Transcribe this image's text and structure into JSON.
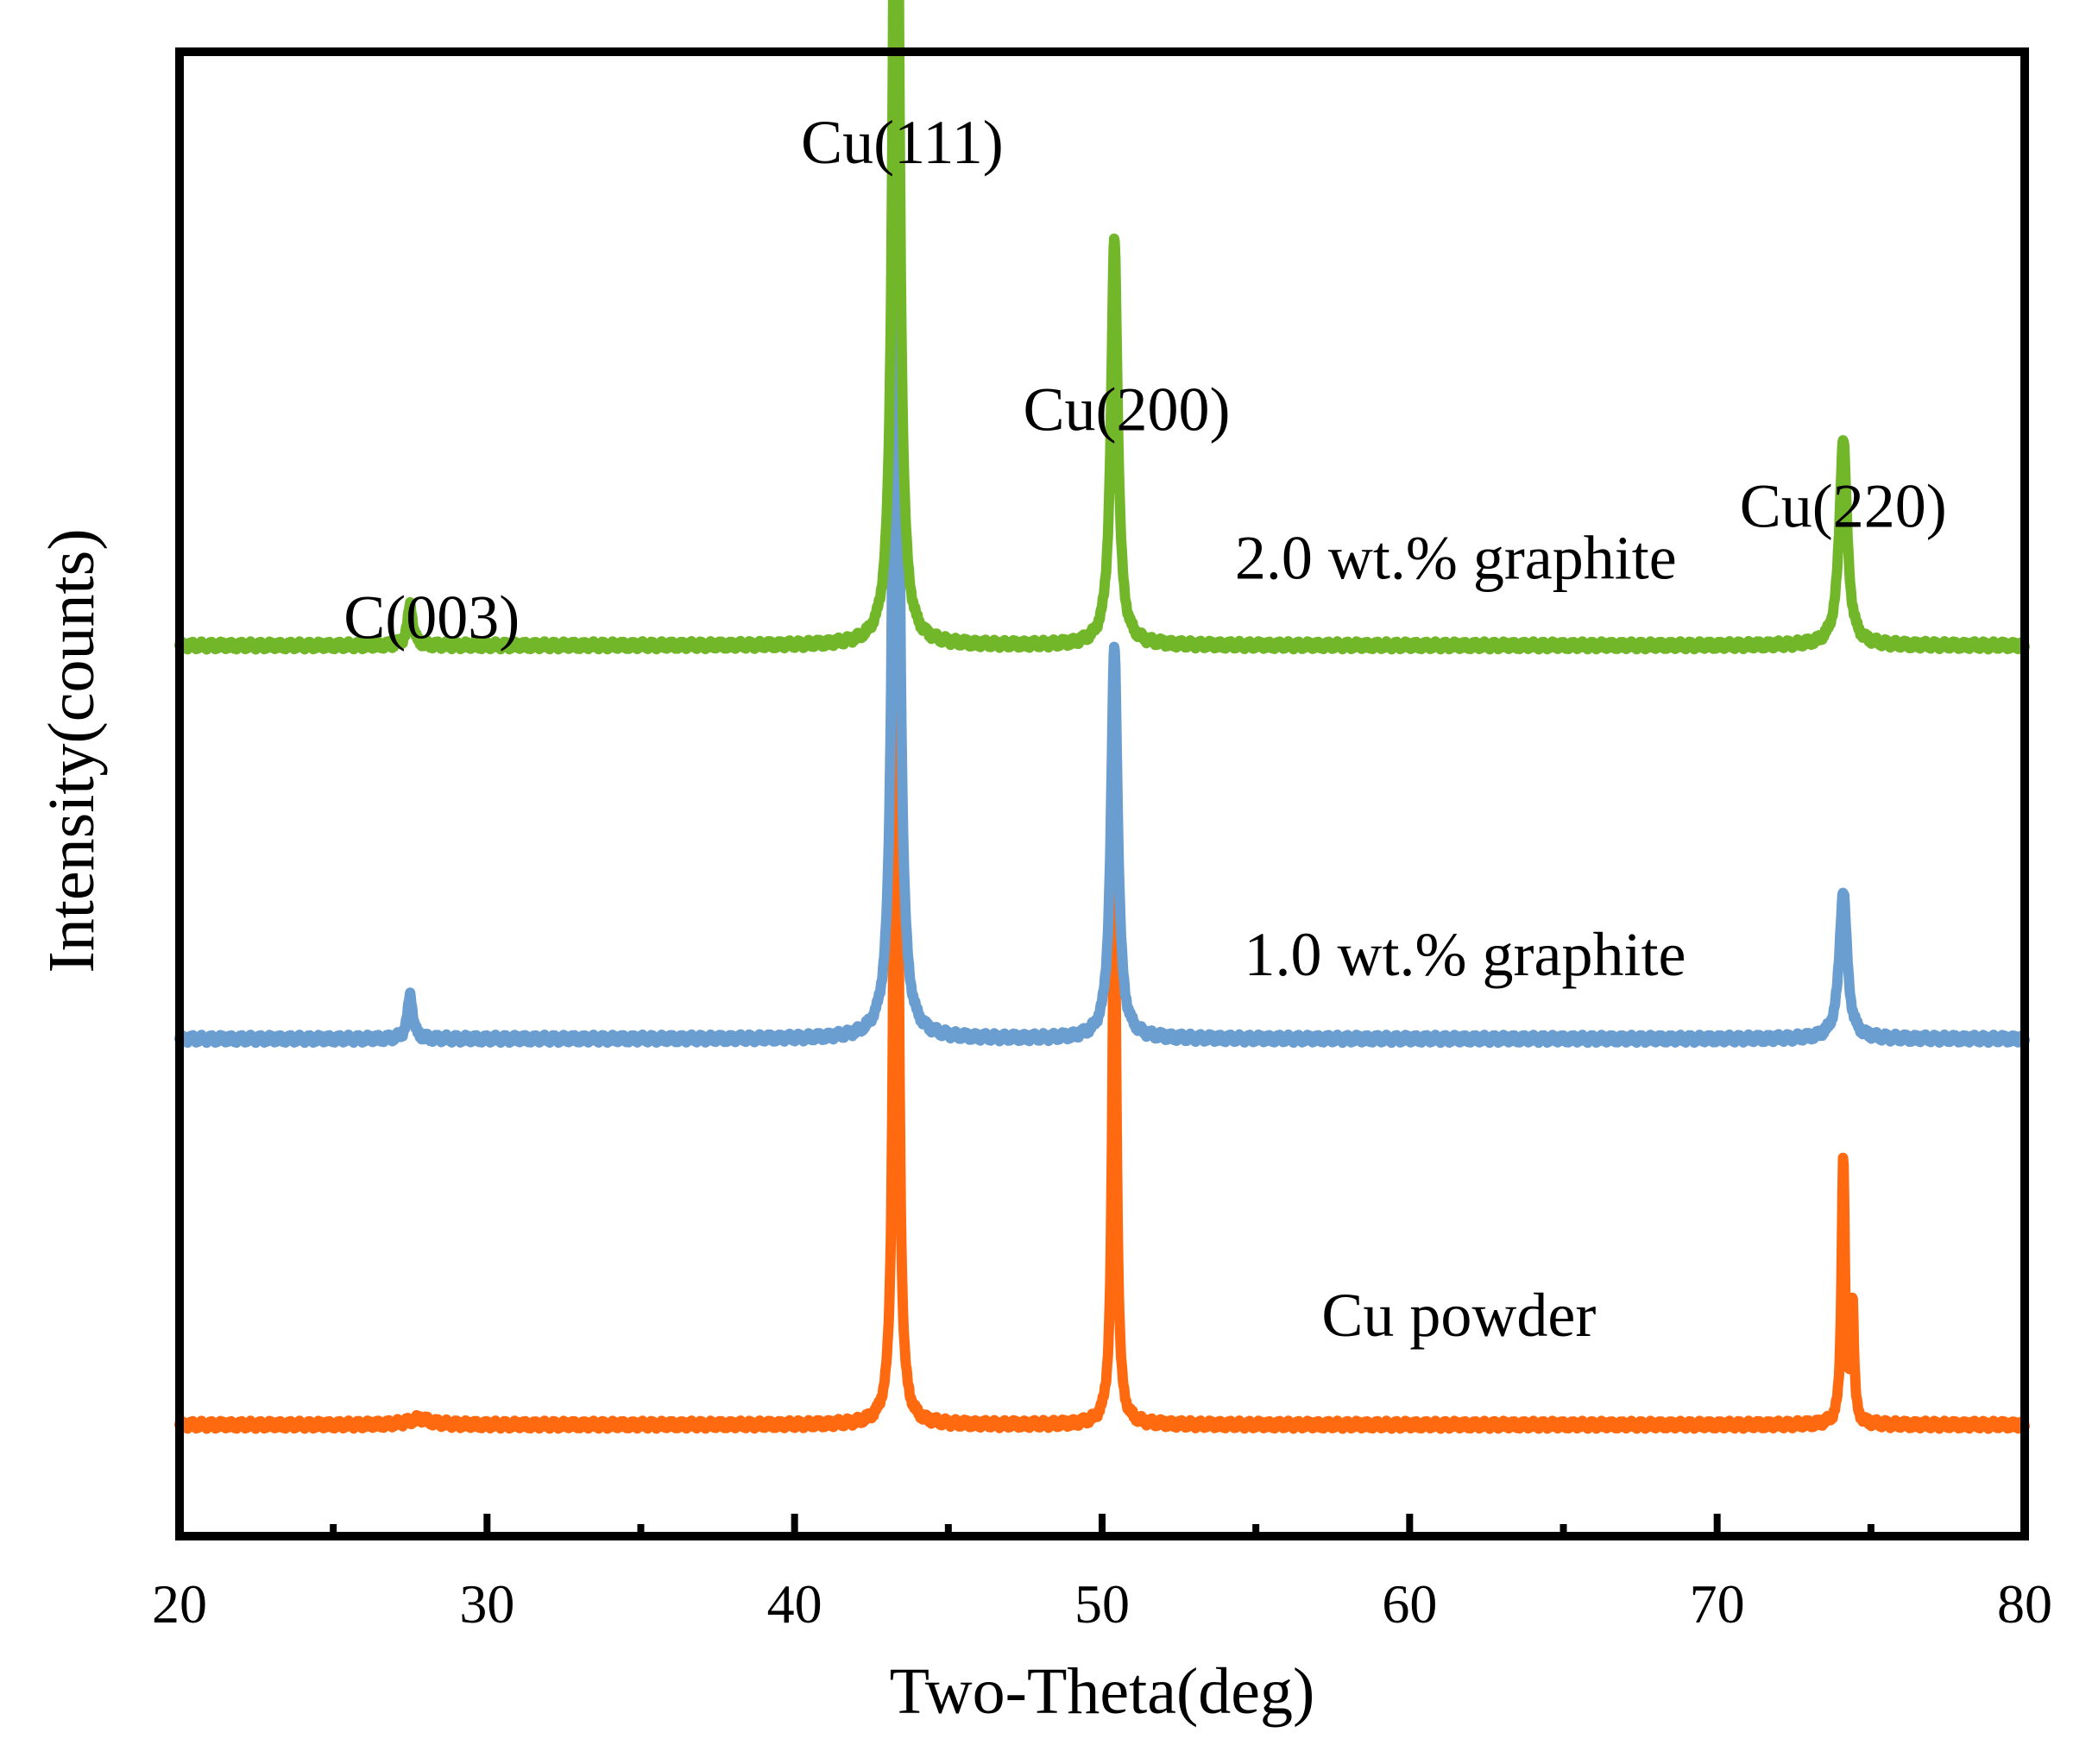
{
  "chart_data": {
    "type": "line",
    "title": "",
    "xlabel": "Two-Theta(deg)",
    "ylabel": "Intensity(counts)",
    "xlim": [
      20,
      80
    ],
    "ylim": [
      0,
      1
    ],
    "xticks": [
      20,
      30,
      40,
      50,
      60,
      70,
      80
    ],
    "xticks_minor": [
      25,
      35,
      45,
      55,
      65,
      75
    ],
    "grid": false,
    "legend": "none (series labeled inline)",
    "series": [
      {
        "name": "Cu powder",
        "color": "#FF6A10",
        "baseline": 0.075,
        "peaks": [
          {
            "x": 27.8,
            "height": 0.004,
            "width": 0.9
          },
          {
            "x": 43.3,
            "height": 0.885,
            "width": 0.14
          },
          {
            "x": 50.4,
            "height": 0.385,
            "width": 0.16
          },
          {
            "x": 74.1,
            "height": 0.18,
            "width": 0.13
          },
          {
            "x": 74.4,
            "height": 0.08,
            "width": 0.12
          }
        ]
      },
      {
        "name": "1.0 wt.% graphite",
        "color": "#6A9DD0",
        "baseline": 0.335,
        "peaks": [
          {
            "x": 27.5,
            "height": 0.03,
            "width": 0.2
          },
          {
            "x": 43.3,
            "height": 0.755,
            "width": 0.22
          },
          {
            "x": 50.4,
            "height": 0.265,
            "width": 0.26
          },
          {
            "x": 74.1,
            "height": 0.1,
            "width": 0.3
          }
        ]
      },
      {
        "name": "2.0 wt.% graphite",
        "color": "#72B72A",
        "baseline": 0.6,
        "peaks": [
          {
            "x": 27.5,
            "height": 0.028,
            "width": 0.2
          },
          {
            "x": 43.3,
            "height": 0.765,
            "width": 0.22
          },
          {
            "x": 50.4,
            "height": 0.275,
            "width": 0.26
          },
          {
            "x": 74.1,
            "height": 0.14,
            "width": 0.3
          }
        ]
      }
    ],
    "annotations": [
      {
        "text": "C(003)",
        "x": 28.2,
        "y": 0.605
      },
      {
        "text": "Cu(111)",
        "x": 43.5,
        "y": 0.925
      },
      {
        "text": "Cu(200)",
        "x": 50.8,
        "y": 0.745
      },
      {
        "text": "Cu(220)",
        "x": 74.1,
        "y": 0.68
      }
    ],
    "series_labels": [
      {
        "text": "2.0 wt.% graphite",
        "x": 61.5,
        "y": 0.645
      },
      {
        "text": "1.0 wt.% graphite",
        "x": 61.8,
        "y": 0.378
      },
      {
        "text": "Cu powder",
        "x": 61.6,
        "y": 0.135
      }
    ]
  }
}
